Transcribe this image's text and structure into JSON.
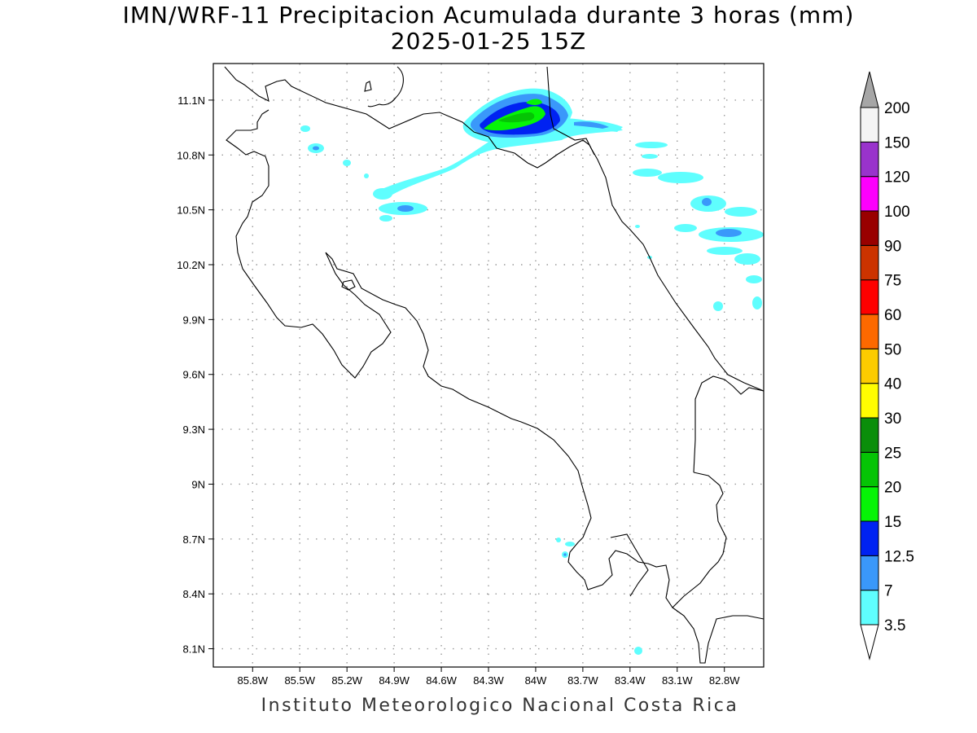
{
  "title": {
    "line1": "IMN/WRF-11 Precipitacion Acumulada durante 3 horas (mm)",
    "line2": "2025-01-25 15Z"
  },
  "footer": "Instituto Meteorologico Nacional Costa Rica",
  "chart_data": {
    "type": "heatmap",
    "lon_ticks": [
      "85.8W",
      "85.5W",
      "85.2W",
      "84.9W",
      "84.6W",
      "84.3W",
      "84W",
      "83.7W",
      "83.4W",
      "83.1W",
      "82.8W"
    ],
    "lat_ticks": [
      "11.1N",
      "10.8N",
      "10.5N",
      "10.2N",
      "9.9N",
      "9.6N",
      "9.3N",
      "9N",
      "8.7N",
      "8.4N",
      "8.1N"
    ],
    "xlim": [
      -86.05,
      -82.55
    ],
    "ylim": [
      8.0,
      11.3
    ],
    "grid": true,
    "legend_position": "right",
    "colorbar": {
      "levels": [
        "3.5",
        "7",
        "12.5",
        "15",
        "20",
        "25",
        "30",
        "40",
        "50",
        "60",
        "75",
        "90",
        "100",
        "120",
        "150",
        "200"
      ],
      "colors": [
        "#5ffefe",
        "#3a98fa",
        "#0022f2",
        "#06f406",
        "#05c405",
        "#0a8e0a",
        "#fffd01",
        "#fccc00",
        "#fd6900",
        "#fe0000",
        "#cc3300",
        "#990000",
        "#fd00fd",
        "#9933cc",
        "#f4f4f4",
        "#a6a6a6"
      ]
    }
  }
}
